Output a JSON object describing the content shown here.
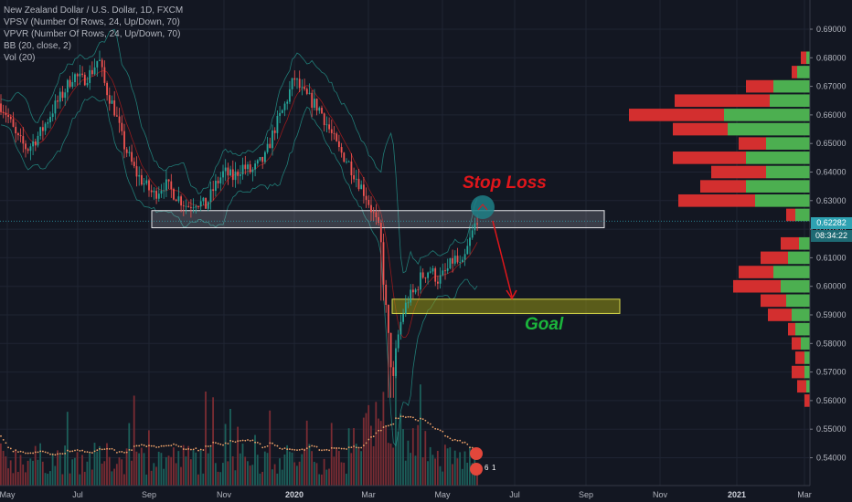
{
  "legend": {
    "title": "New Zealand Dollar / U.S. Dollar, 1D, FXCM",
    "vpsv": "VPSV (Number Of Rows, 24, Up/Down, 70)",
    "vpvr": "VPVR (Number Of Rows, 24, Up/Down, 70)",
    "bb": "BB (20, close, 2)",
    "vol": "Vol (20)"
  },
  "annotations": {
    "stop_loss": "Stop Loss",
    "goal": "Goal"
  },
  "price_tag": {
    "current": "0.62282",
    "countdown": "08:34:22"
  },
  "badges": {
    "earnings_count": "6",
    "dividend_label": "1"
  },
  "colors": {
    "background": "#131722",
    "up": "#26a69a",
    "down": "#ef5350",
    "vp_up": "#4caf50",
    "vp_down": "#d32f2f",
    "bb_band": "#26a69a",
    "bb_basis": "#b71c1c",
    "stop_loss": "#e0161b",
    "goal": "#1bb53c",
    "current_price_line": "#2ea2b2"
  },
  "chart_data": {
    "type": "candlestick",
    "symbol": "NZDUSD",
    "timeframe": "1D",
    "x_ticks": [
      "May",
      "Jul",
      "Sep",
      "Nov",
      "2020",
      "Mar",
      "May",
      "Jul",
      "Sep",
      "Nov",
      "2021",
      "Mar"
    ],
    "y_ticks": [
      "0.54000",
      "0.55000",
      "0.56000",
      "0.57000",
      "0.58000",
      "0.59000",
      "0.60000",
      "0.61000",
      "0.62000",
      "0.63000",
      "0.64000",
      "0.65000",
      "0.66000",
      "0.67000",
      "0.68000",
      "0.69000"
    ],
    "ylim": [
      0.5365,
      0.7
    ],
    "current_price": 0.62282,
    "close_path": {
      "months": [
        "May 2019",
        "Jun 2019",
        "Jul 2019",
        "Aug 2019",
        "Sep 2019",
        "Oct 2019",
        "Nov 2019",
        "Dec 2019",
        "Jan 2020",
        "Feb 2020",
        "Mar 2020",
        "Apr 2020",
        "May 2020",
        "Jun 2020"
      ],
      "points": [
        [
          0,
          0.664
        ],
        [
          8,
          0.66
        ],
        [
          18,
          0.652
        ],
        [
          30,
          0.648
        ],
        [
          45,
          0.654
        ],
        [
          58,
          0.662
        ],
        [
          70,
          0.668
        ],
        [
          80,
          0.674
        ],
        [
          90,
          0.672
        ],
        [
          100,
          0.675
        ],
        [
          108,
          0.68
        ],
        [
          115,
          0.67
        ],
        [
          125,
          0.662
        ],
        [
          135,
          0.65
        ],
        [
          148,
          0.64
        ],
        [
          160,
          0.635
        ],
        [
          168,
          0.632
        ],
        [
          180,
          0.636
        ],
        [
          192,
          0.632
        ],
        [
          205,
          0.628
        ],
        [
          215,
          0.63
        ],
        [
          225,
          0.628
        ],
        [
          235,
          0.635
        ],
        [
          245,
          0.64
        ],
        [
          255,
          0.638
        ],
        [
          265,
          0.642
        ],
        [
          275,
          0.64
        ],
        [
          290,
          0.645
        ],
        [
          300,
          0.655
        ],
        [
          310,
          0.662
        ],
        [
          322,
          0.673
        ],
        [
          330,
          0.668
        ],
        [
          340,
          0.665
        ],
        [
          350,
          0.662
        ],
        [
          360,
          0.655
        ],
        [
          370,
          0.648
        ],
        [
          380,
          0.644
        ],
        [
          390,
          0.638
        ],
        [
          400,
          0.632
        ],
        [
          405,
          0.628
        ],
        [
          410,
          0.624
        ],
        [
          416,
          0.618
        ],
        [
          420,
          0.6
        ],
        [
          426,
          0.578
        ],
        [
          430,
          0.566
        ],
        [
          434,
          0.58
        ],
        [
          440,
          0.59
        ],
        [
          447,
          0.596
        ],
        [
          454,
          0.598
        ],
        [
          460,
          0.603
        ],
        [
          470,
          0.606
        ],
        [
          480,
          0.602
        ],
        [
          490,
          0.606
        ],
        [
          497,
          0.61
        ],
        [
          505,
          0.606
        ],
        [
          512,
          0.614
        ],
        [
          518,
          0.62
        ],
        [
          523,
          0.625
        ]
      ]
    },
    "bollinger": {
      "period": 20,
      "stddev": 2
    },
    "volume_profile_vpvr": [
      {
        "price": 0.56,
        "up": 0,
        "down": 3
      },
      {
        "price": 0.565,
        "up": 2,
        "down": 5
      },
      {
        "price": 0.57,
        "up": 3,
        "down": 7
      },
      {
        "price": 0.575,
        "up": 3,
        "down": 5
      },
      {
        "price": 0.58,
        "up": 5,
        "down": 5
      },
      {
        "price": 0.585,
        "up": 8,
        "down": 4
      },
      {
        "price": 0.59,
        "up": 10,
        "down": 13
      },
      {
        "price": 0.595,
        "up": 13,
        "down": 14
      },
      {
        "price": 0.6,
        "up": 16,
        "down": 26
      },
      {
        "price": 0.605,
        "up": 20,
        "down": 19
      },
      {
        "price": 0.61,
        "up": 12,
        "down": 15
      },
      {
        "price": 0.615,
        "up": 6,
        "down": 10
      },
      {
        "price": 0.62,
        "up": 0,
        "down": 0
      },
      {
        "price": 0.625,
        "up": 8,
        "down": 5
      },
      {
        "price": 0.63,
        "up": 30,
        "down": 42
      },
      {
        "price": 0.635,
        "up": 35,
        "down": 25
      },
      {
        "price": 0.64,
        "up": 24,
        "down": 30
      },
      {
        "price": 0.645,
        "up": 35,
        "down": 40
      },
      {
        "price": 0.65,
        "up": 24,
        "down": 15
      },
      {
        "price": 0.655,
        "up": 45,
        "down": 30
      },
      {
        "price": 0.66,
        "up": 47,
        "down": 52
      },
      {
        "price": 0.665,
        "up": 22,
        "down": 52
      },
      {
        "price": 0.67,
        "up": 20,
        "down": 15
      },
      {
        "price": 0.675,
        "up": 7,
        "down": 3
      },
      {
        "price": 0.68,
        "up": 2,
        "down": 3
      }
    ],
    "zones": [
      {
        "name": "resistance",
        "price_top": 0.6265,
        "price_bottom": 0.6205
      },
      {
        "name": "goal",
        "price_top": 0.5955,
        "price_bottom": 0.5905
      }
    ]
  }
}
